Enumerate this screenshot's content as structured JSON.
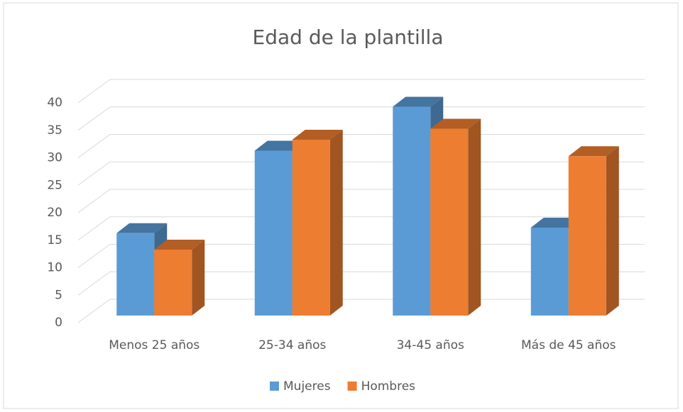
{
  "chart_data": {
    "type": "bar3d",
    "title": "Edad de la plantilla",
    "categories": [
      "Menos 25 años",
      "25-34 años",
      "34-45 años",
      "Más de 45 años"
    ],
    "series": [
      {
        "name": "Mujeres",
        "color": "#5b9bd5",
        "values": [
          15,
          30,
          38,
          16
        ]
      },
      {
        "name": "Hombres",
        "color": "#ed7d31",
        "values": [
          12,
          32,
          34,
          29
        ]
      }
    ],
    "ylim": [
      0,
      40
    ],
    "yticks": [
      0,
      5,
      10,
      15,
      20,
      25,
      30,
      35,
      40
    ],
    "grid": true,
    "legend": "bottom"
  }
}
